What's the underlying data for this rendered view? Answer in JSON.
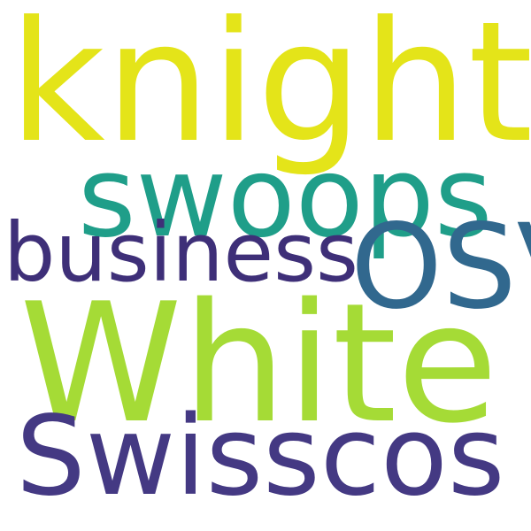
{
  "words": [
    {
      "id": "knight",
      "text": "knight",
      "color": "#e4e419"
    },
    {
      "id": "swoops",
      "text": "swoops",
      "color": "#1f9e89"
    },
    {
      "id": "business",
      "text": "business",
      "color": "#3e2f78"
    },
    {
      "id": "osv",
      "text": "OSV",
      "color": "#31688e"
    },
    {
      "id": "white",
      "text": "White",
      "color": "#a5db36"
    },
    {
      "id": "swisscos",
      "text": "Swisscos",
      "color": "#443983"
    }
  ]
}
